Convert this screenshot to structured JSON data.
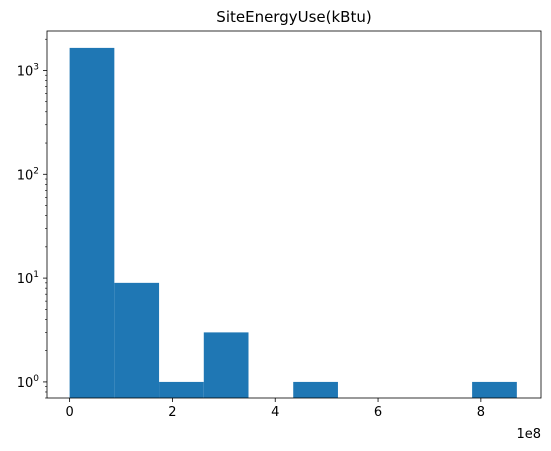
{
  "chart_data": {
    "type": "bar",
    "title": "SiteEnergyUse(kBtu)",
    "xlabel": "",
    "ylabel": "",
    "x_offset_label": "1e8",
    "xlim": [
      -0.44,
      9.17
    ],
    "ylim": [
      0.7,
      2400
    ],
    "y_scale": "log",
    "x_ticks": [
      0,
      2,
      4,
      6,
      8
    ],
    "x_tick_labels": [
      "0",
      "2",
      "4",
      "6",
      "8"
    ],
    "y_major_ticks": [
      1,
      10,
      100,
      1000
    ],
    "y_tick_labels": [
      {
        "base": "10",
        "exp": "0"
      },
      {
        "base": "10",
        "exp": "1"
      },
      {
        "base": "10",
        "exp": "2"
      },
      {
        "base": "10",
        "exp": "3"
      }
    ],
    "bins": [
      {
        "x0": 0.0,
        "x1": 0.87,
        "count": 1650
      },
      {
        "x0": 0.87,
        "x1": 1.74,
        "count": 9
      },
      {
        "x0": 1.74,
        "x1": 2.61,
        "count": 1
      },
      {
        "x0": 2.61,
        "x1": 3.48,
        "count": 3
      },
      {
        "x0": 3.48,
        "x1": 4.35,
        "count": 0
      },
      {
        "x0": 4.35,
        "x1": 5.22,
        "count": 1
      },
      {
        "x0": 5.22,
        "x1": 6.09,
        "count": 0
      },
      {
        "x0": 6.09,
        "x1": 6.96,
        "count": 0
      },
      {
        "x0": 6.96,
        "x1": 7.83,
        "count": 0
      },
      {
        "x0": 7.83,
        "x1": 8.7,
        "count": 1
      }
    ],
    "bar_color": "#1f77b4",
    "grid": false,
    "legend": "none"
  }
}
